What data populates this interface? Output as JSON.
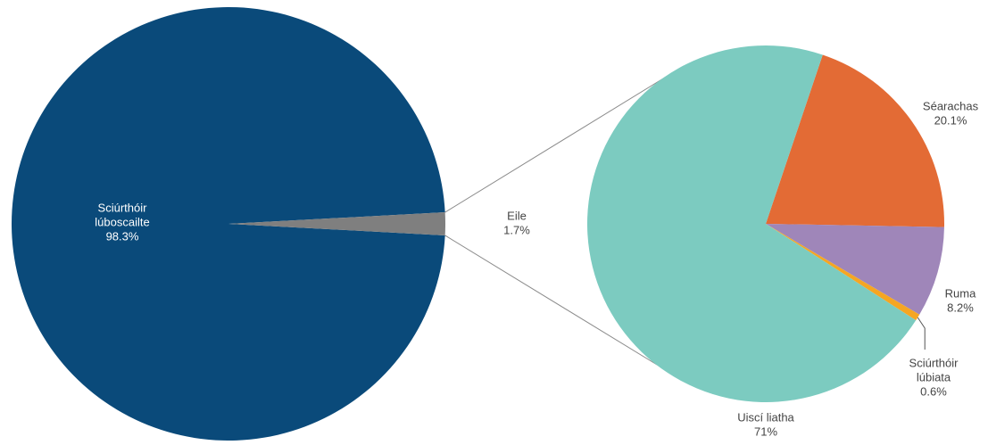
{
  "chart_data": {
    "type": "pie",
    "title": "",
    "main_pie": {
      "slices": [
        {
          "name_lines": [
            "Sciúrthóir",
            "lúboscailte"
          ],
          "value_label": "98.3%",
          "value": 98.3,
          "color": "#0a4a7a"
        },
        {
          "name_lines": [
            "Eile"
          ],
          "value_label": "1.7%",
          "value": 1.7,
          "color": "#7f7f7f"
        }
      ]
    },
    "detail_pie": {
      "of_slice": "Eile",
      "slices": [
        {
          "name_lines": [
            "Uiscí liatha"
          ],
          "value_label": "71%",
          "value": 71,
          "color": "#7ccbc0"
        },
        {
          "name_lines": [
            "Séarachas"
          ],
          "value_label": "20.1%",
          "value": 20.1,
          "color": "#e36b35"
        },
        {
          "name_lines": [
            "Ruma"
          ],
          "value_label": "8.2%",
          "value": 8.2,
          "color": "#9f86b9"
        },
        {
          "name_lines": [
            "Sciúrthóir",
            "lúbiata"
          ],
          "value_label": "0.6%",
          "value": 0.6,
          "color": "#f5a623"
        }
      ]
    }
  }
}
